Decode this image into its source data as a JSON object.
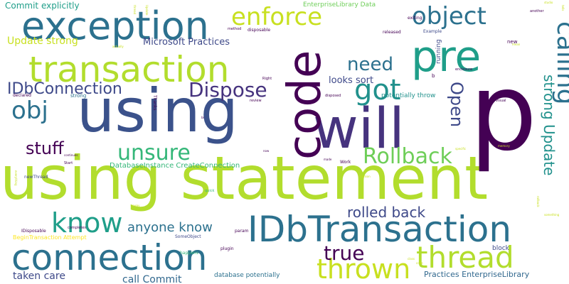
{
  "title": "",
  "words": [
    {
      "text": "using statement",
      "color": "#b2dd2d"
    },
    {
      "text": "connection",
      "color": "#2c718e"
    },
    {
      "text": "using",
      "color": "#3b528b"
    },
    {
      "text": "will",
      "color": "#46337e"
    },
    {
      "text": "p",
      "color": "#440154"
    },
    {
      "text": "code",
      "color": "#440154"
    },
    {
      "text": "pre",
      "color": "#1f9e89"
    },
    {
      "text": "exception",
      "color": "#2c718e"
    },
    {
      "text": "transaction",
      "color": "#b2dd2d"
    },
    {
      "text": "IDbTransaction",
      "color": "#2c718e"
    },
    {
      "text": "thrown",
      "color": "#c8e020"
    },
    {
      "text": "thread",
      "color": "#b2dd2d"
    },
    {
      "text": "enforce",
      "color": "#c8e020"
    },
    {
      "text": "object",
      "color": "#2c718e"
    },
    {
      "text": "calling",
      "color": "#2c718e"
    },
    {
      "text": "know",
      "color": "#1f9e89"
    },
    {
      "text": "got",
      "color": "#21918c"
    },
    {
      "text": "need",
      "color": "#2c718e"
    },
    {
      "text": "obj",
      "color": "#2c718e"
    },
    {
      "text": "unsure",
      "color": "#35b779"
    },
    {
      "text": "Rollback",
      "color": "#6ece58"
    },
    {
      "text": "Dispose",
      "color": "#46337e"
    },
    {
      "text": "IDbConnection",
      "color": "#3e4989"
    },
    {
      "text": "stuff",
      "color": "#440154"
    },
    {
      "text": "true",
      "color": "#440154"
    },
    {
      "text": "Open",
      "color": "#3e4989"
    },
    {
      "text": "strong Update",
      "color": "#21918c"
    },
    {
      "text": "rolled back",
      "color": "#3e4989"
    },
    {
      "text": "anyone know",
      "color": "#2c718e"
    },
    {
      "text": "Commit explicitly",
      "color": "#1f9e89"
    },
    {
      "text": "Update strong",
      "color": "#c8e020"
    },
    {
      "text": "Microsoft Practices",
      "color": "#3e4989"
    },
    {
      "text": "looks sort",
      "color": "#3e4989"
    },
    {
      "text": "taken care",
      "color": "#3e4989"
    },
    {
      "text": "call Commit",
      "color": "#31688e"
    },
    {
      "text": "Practices EnterpriseLibrary",
      "color": "#31688e"
    },
    {
      "text": "EnterpriseLibrary Data",
      "color": "#6ece58"
    },
    {
      "text": "DatabaseInstance CreateConnection",
      "color": "#35b779"
    },
    {
      "text": "potentially throw",
      "color": "#21918c"
    },
    {
      "text": "database potentially",
      "color": "#2c718e"
    },
    {
      "text": "BeginTransaction Attempt",
      "color": "#fde725"
    },
    {
      "text": "block",
      "color": "#3e4989"
    },
    {
      "text": "running",
      "color": "#3e4989"
    },
    {
      "text": "param",
      "color": "#440154"
    },
    {
      "text": "plugin",
      "color": "#440154"
    },
    {
      "text": "SomeObject",
      "color": "#3e4989"
    },
    {
      "text": "happens",
      "color": "#35b779"
    },
    {
      "text": "IDisposable",
      "color": "#440154"
    },
    {
      "text": "completes",
      "color": "#440154"
    },
    {
      "text": "newThread",
      "color": "#3e4989"
    },
    {
      "text": "strong",
      "color": "#2c718e"
    },
    {
      "text": "declared",
      "color": "#440154"
    },
    {
      "text": "Thanks",
      "color": "#440154"
    },
    {
      "text": "disposed",
      "color": "#440154"
    },
    {
      "text": "released",
      "color": "#440154"
    },
    {
      "text": "Example",
      "color": "#3e4989"
    },
    {
      "text": "exiting",
      "color": "#440154"
    },
    {
      "text": "another",
      "color": "#440154"
    },
    {
      "text": "method",
      "color": "#440154"
    },
    {
      "text": "disposable",
      "color": "#440154"
    },
    {
      "text": "Right",
      "color": "#440154"
    },
    {
      "text": "review",
      "color": "#440154"
    },
    {
      "text": "visual",
      "color": "#440154"
    },
    {
      "text": "enclosure",
      "color": "#440154"
    },
    {
      "text": "made",
      "color": "#440154"
    },
    {
      "text": "Work",
      "color": "#440154"
    },
    {
      "text": "Start",
      "color": "#440154"
    },
    {
      "text": "continues",
      "color": "#440154"
    },
    {
      "text": "quick",
      "color": "#35b779"
    },
    {
      "text": "new",
      "color": "#440154"
    },
    {
      "text": "b",
      "color": "#440154"
    },
    {
      "text": "br",
      "color": "#440154"
    },
    {
      "text": "now",
      "color": "#440154"
    },
    {
      "text": "away",
      "color": "#c8e020"
    },
    {
      "text": "something",
      "color": "#c8e020"
    },
    {
      "text": "version",
      "color": "#c8e020"
    },
    {
      "text": "specific",
      "color": "#c8e020"
    },
    {
      "text": "actually",
      "color": "#c8e020"
    },
    {
      "text": "memory",
      "color": "#c8e020"
    },
    {
      "text": "studio",
      "color": "#c8e020"
    },
    {
      "text": "tells",
      "color": "#c8e020"
    },
    {
      "text": "mean",
      "color": "#c8e020"
    },
    {
      "text": "code",
      "color": "#c8e020"
    },
    {
      "text": "rollback",
      "color": "#c8e020"
    },
    {
      "text": "class",
      "color": "#c8e020"
    },
    {
      "text": "everything",
      "color": "#c8e020"
    },
    {
      "text": "thread",
      "color": "#c8e020"
    },
    {
      "text": "Update",
      "color": "#c8e020"
    }
  ]
}
